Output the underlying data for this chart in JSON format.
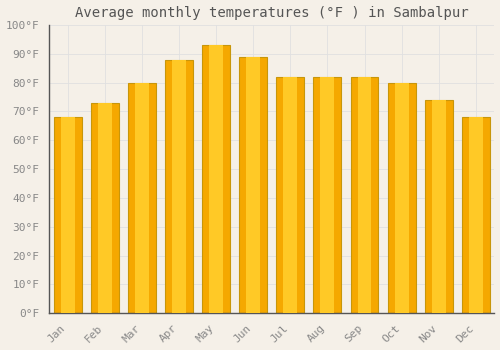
{
  "title": "Average monthly temperatures (°F ) in Sambalpur",
  "months": [
    "Jan",
    "Feb",
    "Mar",
    "Apr",
    "May",
    "Jun",
    "Jul",
    "Aug",
    "Sep",
    "Oct",
    "Nov",
    "Dec"
  ],
  "values": [
    68,
    73,
    80,
    88,
    93,
    89,
    82,
    82,
    82,
    80,
    74,
    68
  ],
  "bar_color_center": "#FFC926",
  "bar_color_edge": "#F5A800",
  "bar_outline_color": "#C8960A",
  "background_color": "#F5F0E8",
  "grid_color": "#E0E0E0",
  "ylim": [
    0,
    100
  ],
  "yticks": [
    0,
    10,
    20,
    30,
    40,
    50,
    60,
    70,
    80,
    90,
    100
  ],
  "title_fontsize": 10,
  "tick_fontsize": 8,
  "tick_font_color": "#888888",
  "title_color": "#555555",
  "bar_width": 0.75
}
